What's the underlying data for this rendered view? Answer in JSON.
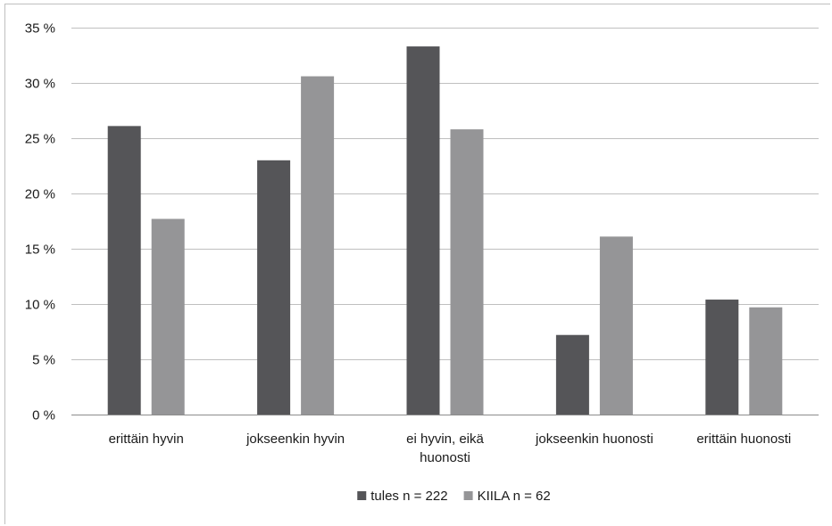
{
  "chart_data": {
    "type": "bar",
    "title": "",
    "xlabel": "",
    "ylabel": "",
    "ylim": [
      0,
      35
    ],
    "y_ticks": [
      0,
      5,
      10,
      15,
      20,
      25,
      30,
      35
    ],
    "y_tick_labels": [
      "0 %",
      "5 %",
      "10 %",
      "15 %",
      "20 %",
      "25 %",
      "30 %",
      "35 %"
    ],
    "grid": true,
    "legend_position": "bottom",
    "categories": [
      [
        "erittäin hyvin"
      ],
      [
        "jokseenkin hyvin"
      ],
      [
        "ei hyvin, eikä",
        "huonosti"
      ],
      [
        "jokseenkin huonosti"
      ],
      [
        "erittäin huonosti"
      ]
    ],
    "series": [
      {
        "name": "tules n = 222",
        "color": "#555558",
        "values": [
          26.1,
          23.0,
          33.3,
          7.2,
          10.4
        ]
      },
      {
        "name": "KIILA n = 62",
        "color": "#959597",
        "values": [
          17.7,
          30.6,
          25.8,
          16.1,
          9.7
        ]
      }
    ]
  }
}
